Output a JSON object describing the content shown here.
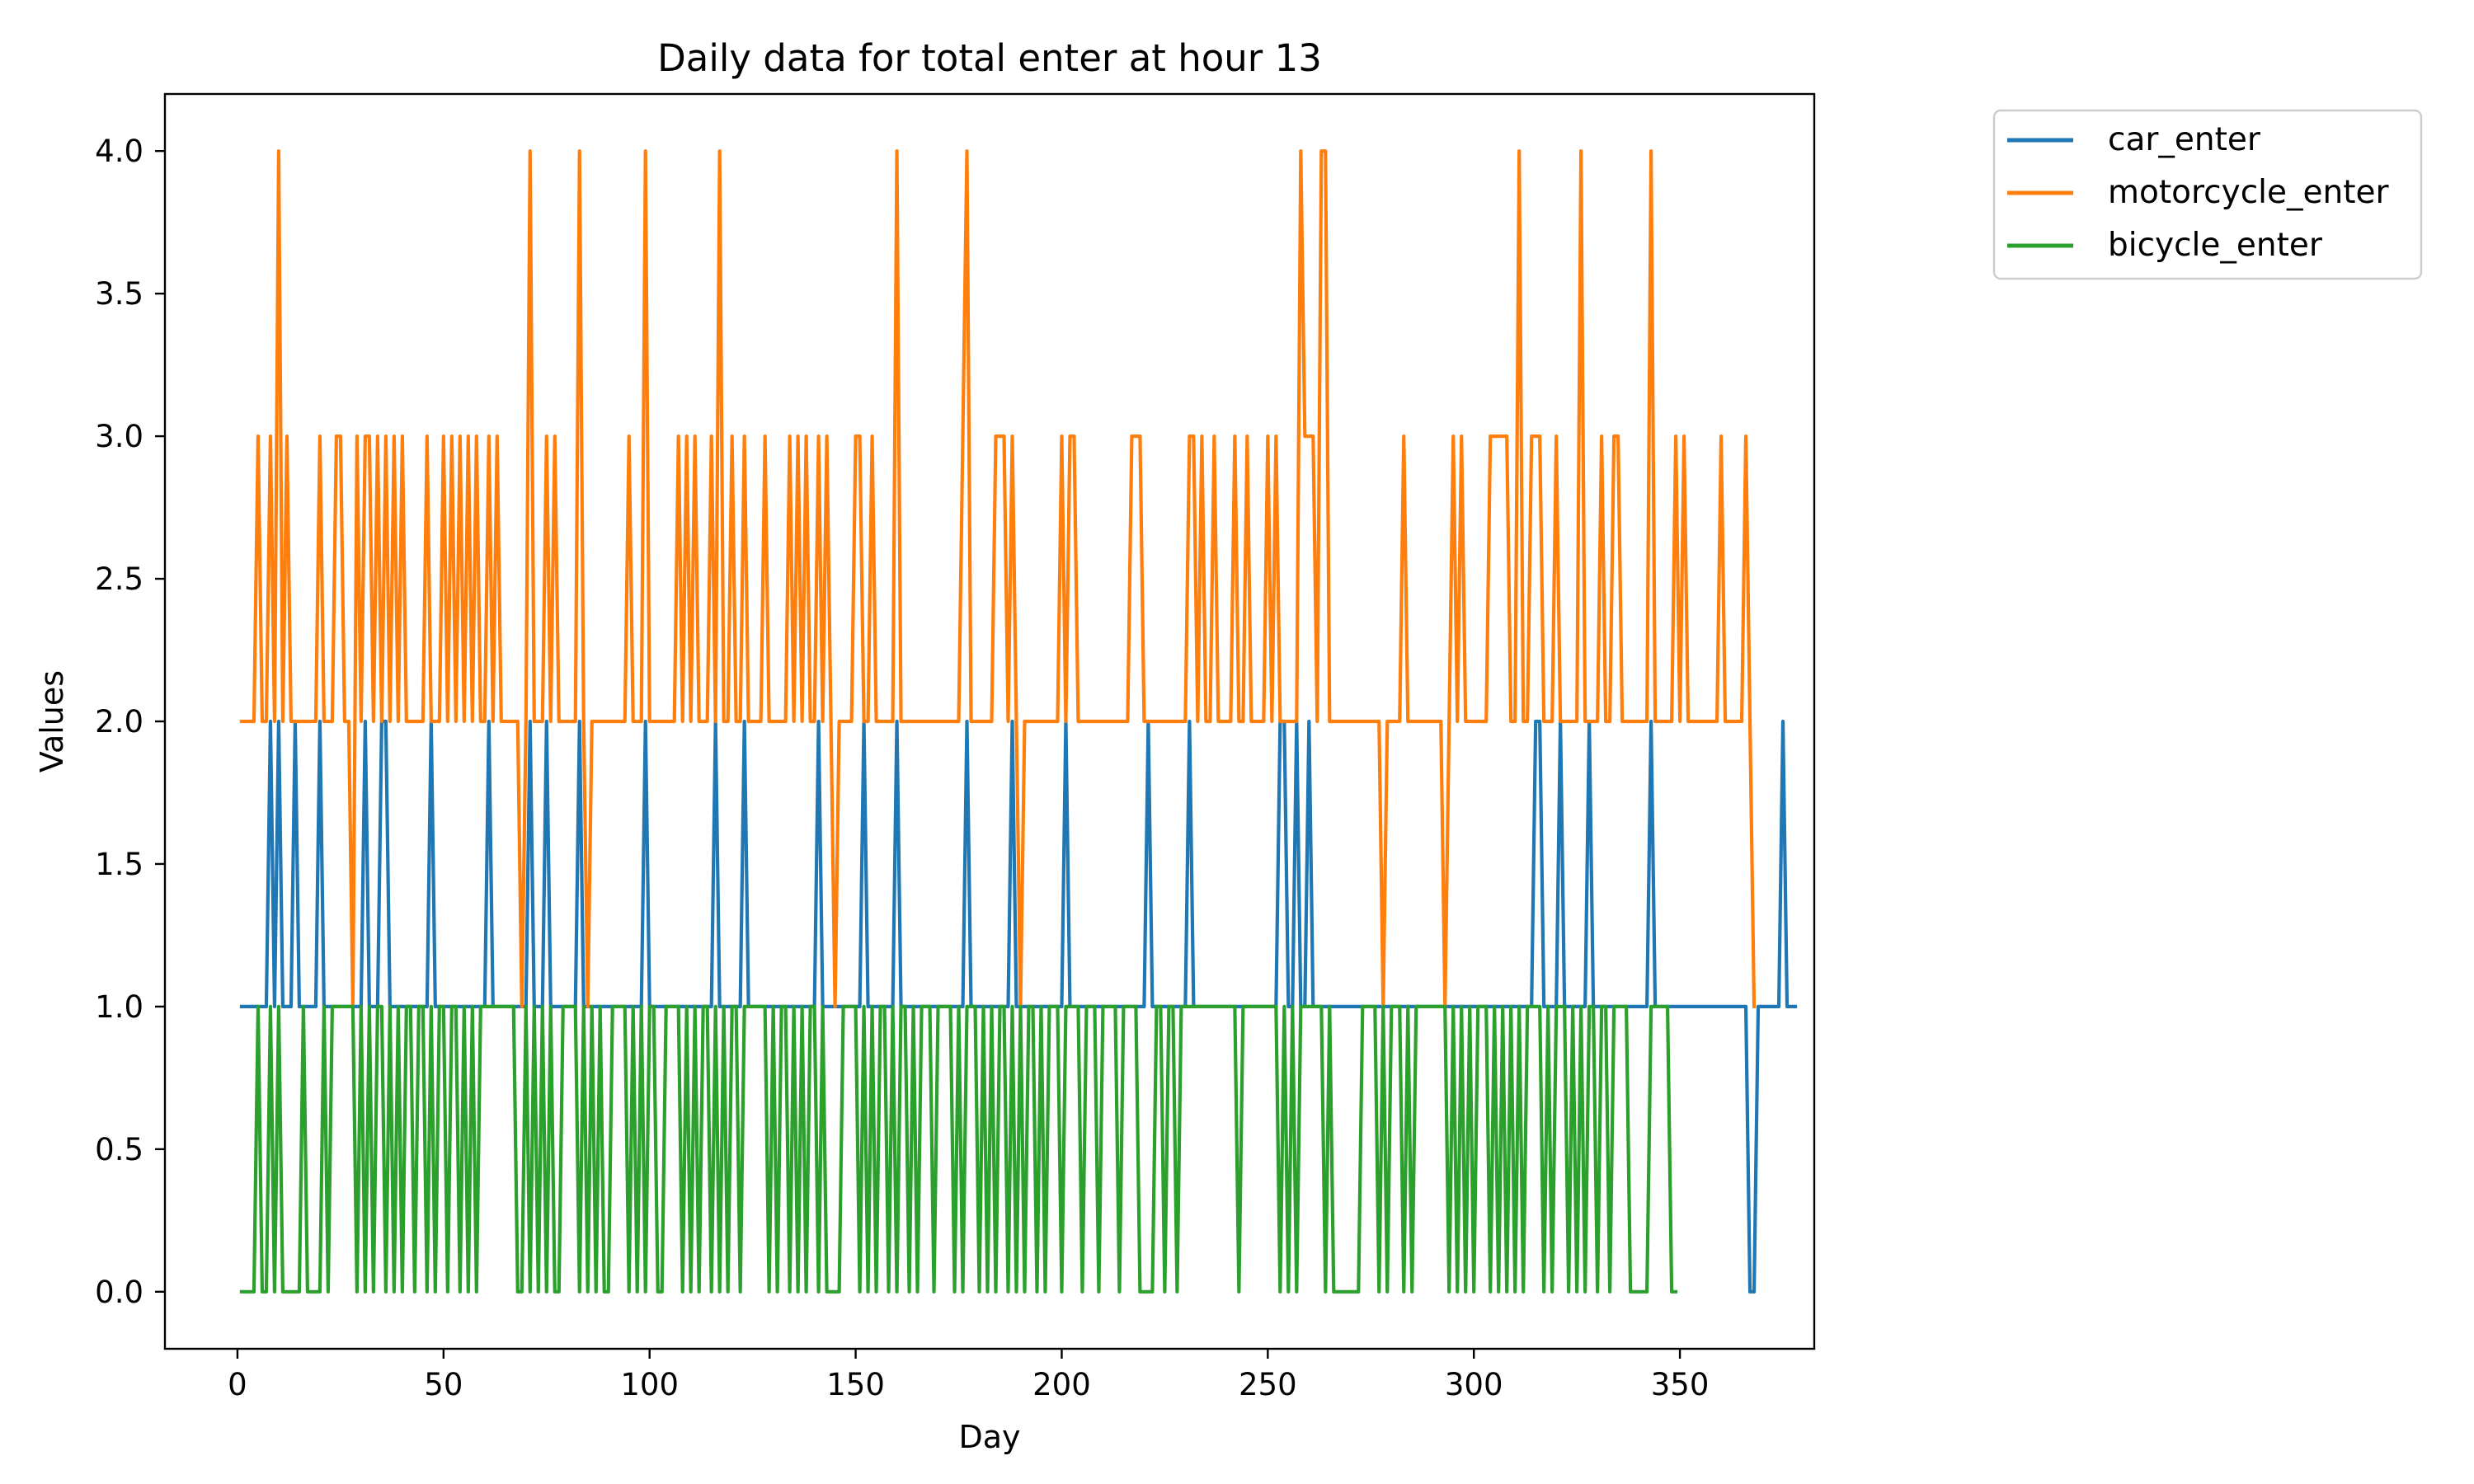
{
  "chart_data": {
    "type": "line",
    "title": "Daily data for total enter at hour 13",
    "xlabel": "Day",
    "ylabel": "Values",
    "xlim": [
      -17.6,
      382.6
    ],
    "ylim": [
      -0.2,
      4.2
    ],
    "xticks": [
      0,
      50,
      100,
      150,
      200,
      250,
      300,
      350
    ],
    "xtick_labels": [
      "0",
      "50",
      "100",
      "150",
      "200",
      "250",
      "300",
      "350"
    ],
    "yticks": [
      0.0,
      0.5,
      1.0,
      1.5,
      2.0,
      2.5,
      3.0,
      3.5,
      4.0
    ],
    "ytick_labels": [
      "0.0",
      "0.5",
      "1.0",
      "1.5",
      "2.0",
      "2.5",
      "3.0",
      "3.5",
      "4.0"
    ],
    "grid": false,
    "legend_position": "outside-top-right",
    "series": [
      {
        "name": "car_enter",
        "color": "#1f77b4",
        "values": [
          1,
          1,
          1,
          1,
          1,
          1,
          1,
          2,
          1,
          2,
          1,
          1,
          1,
          2,
          1,
          1,
          1,
          1,
          1,
          2,
          1,
          1,
          1,
          1,
          1,
          1,
          1,
          1,
          1,
          1,
          2,
          1,
          1,
          1,
          2,
          2,
          1,
          1,
          1,
          1,
          1,
          1,
          1,
          1,
          1,
          1,
          2,
          1,
          1,
          1,
          1,
          1,
          1,
          1,
          1,
          1,
          1,
          1,
          1,
          1,
          2,
          1,
          1,
          1,
          1,
          1,
          1,
          1,
          1,
          1,
          2,
          1,
          1,
          1,
          2,
          1,
          1,
          1,
          1,
          1,
          1,
          1,
          2,
          1,
          1,
          1,
          1,
          1,
          1,
          1,
          1,
          1,
          1,
          1,
          1,
          1,
          1,
          1,
          2,
          1,
          1,
          1,
          1,
          1,
          1,
          1,
          1,
          1,
          1,
          1,
          1,
          1,
          1,
          1,
          1,
          2,
          1,
          1,
          1,
          1,
          1,
          1,
          2,
          1,
          1,
          1,
          1,
          1,
          1,
          1,
          1,
          1,
          1,
          1,
          1,
          1,
          1,
          1,
          1,
          1,
          2,
          1,
          1,
          1,
          1,
          1,
          1,
          1,
          1,
          1,
          1,
          2,
          1,
          1,
          1,
          1,
          1,
          1,
          1,
          2,
          1,
          1,
          1,
          1,
          1,
          1,
          1,
          1,
          1,
          1,
          1,
          1,
          1,
          1,
          1,
          1,
          2,
          1,
          1,
          1,
          1,
          1,
          1,
          1,
          1,
          1,
          1,
          2,
          1,
          1,
          1,
          1,
          1,
          1,
          1,
          1,
          1,
          1,
          1,
          1,
          2,
          1,
          1,
          1,
          1,
          1,
          1,
          1,
          1,
          1,
          1,
          1,
          1,
          1,
          1,
          1,
          1,
          1,
          1,
          1,
          2,
          1,
          1,
          1,
          1,
          1,
          1,
          1,
          1,
          1,
          2,
          1,
          1,
          1,
          1,
          1,
          1,
          1,
          1,
          1,
          1,
          1,
          1,
          1,
          1,
          1,
          1,
          1,
          1,
          1,
          1,
          1,
          2,
          2,
          1,
          1,
          2,
          1,
          1,
          2,
          1,
          1,
          1,
          1,
          1,
          1,
          1,
          1,
          1,
          1,
          1,
          1,
          1,
          1,
          1,
          1,
          1,
          1,
          1,
          1,
          1,
          1,
          1,
          1,
          1,
          1,
          1,
          1,
          1,
          1,
          1,
          1,
          1,
          1,
          1,
          1,
          1,
          1,
          1,
          1,
          1,
          1,
          1,
          1,
          1,
          1,
          1,
          1,
          1,
          1,
          1,
          1,
          1,
          1,
          2,
          2,
          1,
          1,
          1,
          1,
          2,
          1,
          1,
          1,
          1,
          1,
          1,
          2,
          1,
          1,
          1,
          1,
          1,
          1,
          1,
          1,
          1,
          1,
          1,
          1,
          1,
          1,
          2,
          1,
          1,
          1,
          1,
          1,
          1,
          1,
          1,
          1,
          1,
          1,
          1,
          1,
          1,
          1,
          1,
          1,
          1,
          1,
          1,
          1,
          1,
          1,
          0,
          0,
          1,
          1,
          1,
          1,
          1,
          1,
          2,
          1,
          1,
          1
        ]
      },
      {
        "name": "motorcycle_enter",
        "color": "#ff7f0e",
        "values": [
          2,
          2,
          2,
          2,
          3,
          2,
          2,
          3,
          2,
          4,
          2,
          3,
          2,
          2,
          2,
          2,
          2,
          2,
          2,
          3,
          2,
          2,
          2,
          3,
          3,
          2,
          2,
          1,
          3,
          2,
          3,
          3,
          2,
          3,
          2,
          3,
          2,
          3,
          2,
          3,
          2,
          2,
          2,
          2,
          2,
          3,
          2,
          2,
          2,
          3,
          2,
          3,
          2,
          3,
          2,
          3,
          2,
          3,
          2,
          2,
          3,
          2,
          3,
          2,
          2,
          2,
          2,
          2,
          1,
          2,
          4,
          2,
          2,
          2,
          3,
          2,
          3,
          2,
          2,
          2,
          2,
          2,
          4,
          2,
          1,
          2,
          2,
          2,
          2,
          2,
          2,
          2,
          2,
          2,
          3,
          2,
          2,
          2,
          4,
          2,
          2,
          2,
          2,
          2,
          2,
          2,
          3,
          2,
          3,
          2,
          3,
          2,
          2,
          2,
          3,
          2,
          4,
          2,
          2,
          3,
          2,
          2,
          3,
          2,
          2,
          2,
          2,
          3,
          2,
          2,
          2,
          2,
          2,
          3,
          2,
          3,
          2,
          3,
          2,
          2,
          3,
          2,
          3,
          2,
          1,
          2,
          2,
          2,
          2,
          3,
          3,
          2,
          2,
          3,
          2,
          2,
          2,
          2,
          2,
          4,
          2,
          2,
          2,
          2,
          2,
          2,
          2,
          2,
          2,
          2,
          2,
          2,
          2,
          2,
          2,
          3,
          4,
          2,
          2,
          2,
          2,
          2,
          2,
          3,
          3,
          3,
          2,
          3,
          2,
          1,
          2,
          2,
          2,
          2,
          2,
          2,
          2,
          2,
          2,
          3,
          2,
          3,
          3,
          2,
          2,
          2,
          2,
          2,
          2,
          2,
          2,
          2,
          2,
          2,
          2,
          2,
          3,
          3,
          3,
          2,
          2,
          2,
          2,
          2,
          2,
          2,
          2,
          2,
          2,
          2,
          3,
          3,
          2,
          3,
          2,
          2,
          3,
          2,
          2,
          2,
          2,
          3,
          2,
          2,
          3,
          2,
          2,
          2,
          2,
          3,
          2,
          3,
          2,
          2,
          2,
          2,
          2,
          4,
          3,
          3,
          3,
          2,
          4,
          4,
          2,
          2,
          2,
          2,
          2,
          2,
          2,
          2,
          2,
          2,
          2,
          2,
          2,
          1,
          2,
          2,
          2,
          2,
          3,
          2,
          2,
          2,
          2,
          2,
          2,
          2,
          2,
          2,
          1,
          2,
          3,
          2,
          3,
          2,
          2,
          2,
          2,
          2,
          2,
          3,
          3,
          3,
          3,
          3,
          2,
          2,
          4,
          2,
          2,
          3,
          3,
          3,
          2,
          2,
          2,
          3,
          2,
          2,
          2,
          2,
          2,
          4,
          2,
          2,
          2,
          2,
          3,
          2,
          2,
          3,
          3,
          2,
          2,
          2,
          2,
          2,
          2,
          2,
          4,
          2,
          2,
          2,
          2,
          2,
          3,
          2,
          3,
          2,
          2,
          2,
          2,
          2,
          2,
          2,
          2,
          3,
          2,
          2,
          2,
          2,
          2,
          3,
          2,
          1
        ]
      },
      {
        "name": "bicycle_enter",
        "color": "#2ca02c",
        "values": [
          0,
          0,
          0,
          0,
          1,
          0,
          0,
          1,
          0,
          1,
          0,
          0,
          0,
          0,
          0,
          1,
          0,
          0,
          0,
          0,
          1,
          0,
          1,
          1,
          1,
          1,
          1,
          1,
          0,
          1,
          0,
          1,
          0,
          1,
          1,
          0,
          1,
          0,
          1,
          0,
          1,
          1,
          0,
          1,
          1,
          0,
          1,
          0,
          1,
          1,
          0,
          1,
          1,
          0,
          1,
          0,
          1,
          0,
          1,
          1,
          1,
          1,
          1,
          1,
          1,
          1,
          1,
          0,
          0,
          1,
          0,
          1,
          0,
          1,
          0,
          1,
          0,
          0,
          1,
          1,
          1,
          1,
          0,
          1,
          0,
          1,
          0,
          1,
          0,
          0,
          1,
          1,
          1,
          1,
          0,
          1,
          0,
          1,
          0,
          1,
          1,
          0,
          0,
          1,
          1,
          1,
          1,
          0,
          1,
          0,
          1,
          0,
          1,
          1,
          0,
          1,
          0,
          1,
          0,
          1,
          1,
          0,
          1,
          1,
          1,
          1,
          1,
          1,
          0,
          1,
          0,
          1,
          1,
          0,
          1,
          0,
          1,
          0,
          1,
          1,
          0,
          1,
          0,
          0,
          0,
          0,
          1,
          1,
          1,
          1,
          0,
          1,
          0,
          1,
          0,
          1,
          1,
          0,
          1,
          0,
          1,
          1,
          0,
          1,
          0,
          1,
          1,
          1,
          0,
          1,
          1,
          1,
          1,
          0,
          1,
          0,
          1,
          1,
          1,
          0,
          1,
          0,
          1,
          0,
          1,
          1,
          0,
          1,
          0,
          1,
          0,
          1,
          1,
          0,
          1,
          0,
          1,
          1,
          1,
          0,
          1,
          1,
          1,
          1,
          0,
          1,
          1,
          1,
          0,
          1,
          1,
          1,
          1,
          0,
          1,
          1,
          1,
          1,
          0,
          0,
          0,
          0,
          1,
          1,
          0,
          1,
          1,
          0,
          1,
          1,
          1,
          1,
          1,
          1,
          1,
          1,
          1,
          1,
          1,
          1,
          1,
          1,
          0,
          1,
          1,
          1,
          1,
          1,
          1,
          1,
          1,
          1,
          0,
          1,
          0,
          1,
          0,
          1,
          1,
          1,
          1,
          1,
          1,
          0,
          1,
          0,
          0,
          0,
          0,
          0,
          0,
          0,
          1,
          1,
          1,
          1,
          0,
          1,
          0,
          1,
          1,
          1,
          0,
          1,
          0,
          1,
          1,
          1,
          1,
          1,
          1,
          1,
          1,
          0,
          1,
          0,
          1,
          0,
          1,
          0,
          1,
          1,
          1,
          0,
          1,
          0,
          1,
          0,
          1,
          0,
          1,
          0,
          1,
          1,
          1,
          1,
          0,
          1,
          0,
          1,
          1,
          1,
          0,
          1,
          0,
          1,
          0,
          1,
          1,
          0,
          1,
          1,
          0,
          1,
          1,
          1,
          1,
          0,
          0,
          0,
          0,
          0,
          1,
          1,
          1,
          1,
          1,
          0,
          0
        ]
      }
    ]
  }
}
